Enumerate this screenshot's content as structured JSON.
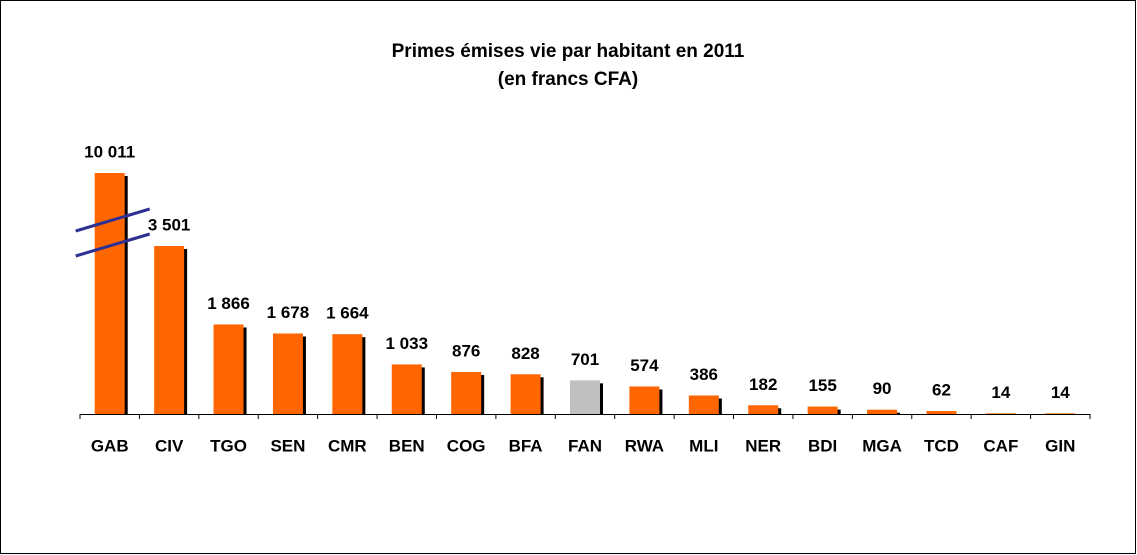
{
  "chart_data": {
    "type": "bar",
    "title": "Primes émises vie par habitant en 2011",
    "subtitle": "(en francs CFA)",
    "categories": [
      "GAB",
      "CIV",
      "TGO",
      "SEN",
      "CMR",
      "BEN",
      "COG",
      "BFA",
      "FAN",
      "RWA",
      "MLI",
      "NER",
      "BDI",
      "MGA",
      "TCD",
      "CAF",
      "GIN"
    ],
    "values": [
      10011,
      3501,
      1866,
      1678,
      1664,
      1033,
      876,
      828,
      701,
      574,
      386,
      182,
      155,
      90,
      62,
      14,
      14
    ],
    "value_labels": [
      "10 011",
      "3 501",
      "1 866",
      "1 678",
      "1 664",
      "1 033",
      "876",
      "828",
      "701",
      "574",
      "386",
      "182",
      "155",
      "90",
      "62",
      "14",
      "14"
    ],
    "colors": [
      "#ff6600",
      "#ff6600",
      "#ff6600",
      "#ff6600",
      "#ff6600",
      "#ff6600",
      "#ff6600",
      "#ff6600",
      "#c0c0c0",
      "#ff6600",
      "#ff6600",
      "#ff6600",
      "#ff6600",
      "#ff6600",
      "#ff6600",
      "#ff6600",
      "#ff6600"
    ],
    "break_color": "#2e3192"
  }
}
